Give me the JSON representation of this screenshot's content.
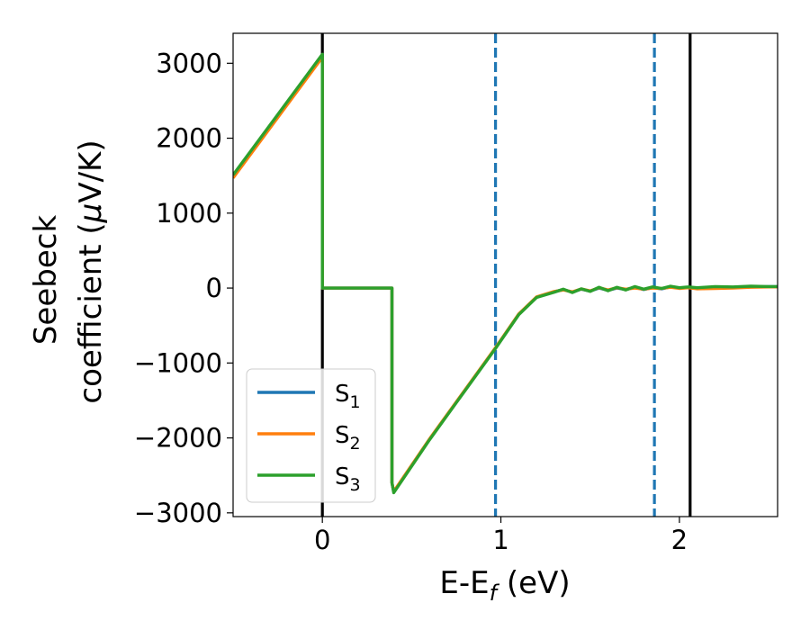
{
  "chart_data": {
    "type": "line",
    "xlabel": {
      "main": "E-E",
      "sub": "f",
      "unit": " (eV)"
    },
    "ylabel": {
      "line1": "Seebeck",
      "line2": "coefficient  (",
      "mu": "μ",
      "line2_end": "V/K)"
    },
    "xlim": [
      -0.5,
      2.55
    ],
    "ylim": [
      -3050,
      3400
    ],
    "xticks": [
      {
        "value": 0,
        "label": "0"
      },
      {
        "value": 1,
        "label": "1"
      },
      {
        "value": 2,
        "label": "2"
      }
    ],
    "yticks": [
      {
        "value": 3000,
        "label": "3000"
      },
      {
        "value": 2000,
        "label": "2000"
      },
      {
        "value": 1000,
        "label": "1000"
      },
      {
        "value": 0,
        "label": "0"
      },
      {
        "value": -1000,
        "label": "−1000"
      },
      {
        "value": -2000,
        "label": "−2000"
      },
      {
        "value": -3000,
        "label": "−3000"
      }
    ],
    "grid": false,
    "legend": {
      "placement": "lower-left"
    },
    "vlines": [
      {
        "x": 0.0,
        "color": "#000000",
        "style": "solid"
      },
      {
        "x": 2.06,
        "color": "#000000",
        "style": "solid"
      },
      {
        "x": 0.97,
        "color": "#1f77b4",
        "style": "dashed"
      },
      {
        "x": 1.86,
        "color": "#1f77b4",
        "style": "dashed"
      }
    ],
    "series": [
      {
        "name": "S",
        "sub": "1",
        "color": "#1f77b4",
        "x": [
          -0.5,
          0.0,
          0.0,
          0.0,
          0.39,
          0.39,
          0.4,
          0.6,
          0.8,
          0.97,
          1.1,
          1.2,
          1.3,
          1.35,
          1.4,
          1.45,
          1.5,
          1.55,
          1.6,
          1.65,
          1.7,
          1.75,
          1.8,
          1.85,
          1.9,
          1.95,
          2.0,
          2.05,
          2.1,
          2.2,
          2.3,
          2.4,
          2.5,
          2.55
        ],
        "y": [
          1500,
          3110,
          3110,
          0,
          0,
          -2600,
          -2720,
          -2020,
          -1360,
          -800,
          -350,
          -120,
          -50,
          -20,
          -55,
          -15,
          -40,
          0,
          -30,
          0,
          -20,
          10,
          -20,
          5,
          -10,
          15,
          0,
          10,
          0,
          5,
          10,
          15,
          20,
          20
        ]
      },
      {
        "name": "S",
        "sub": "2",
        "color": "#ff7f0e",
        "x": [
          -0.5,
          0.0,
          0.0,
          0.0,
          0.39,
          0.39,
          0.4,
          0.6,
          0.8,
          0.97,
          1.1,
          1.2,
          1.3,
          1.35,
          1.4,
          1.45,
          1.5,
          1.55,
          1.6,
          1.65,
          1.7,
          1.75,
          1.8,
          1.85,
          1.9,
          1.95,
          2.0,
          2.05,
          2.1,
          2.2,
          2.3,
          2.4,
          2.5,
          2.55
        ],
        "y": [
          1470,
          3080,
          3080,
          0,
          0,
          -2600,
          -2715,
          -2015,
          -1355,
          -795,
          -345,
          -118,
          -45,
          -25,
          -50,
          -12,
          -38,
          5,
          -25,
          5,
          -15,
          0,
          -15,
          0,
          -5,
          10,
          -5,
          5,
          -10,
          -5,
          0,
          10,
          15,
          15
        ]
      },
      {
        "name": "S",
        "sub": "3",
        "color": "#2ca02c",
        "x": [
          -0.5,
          0.0,
          0.0,
          0.0,
          0.39,
          0.39,
          0.4,
          0.6,
          0.8,
          0.97,
          1.1,
          1.2,
          1.3,
          1.35,
          1.4,
          1.45,
          1.5,
          1.55,
          1.6,
          1.65,
          1.7,
          1.75,
          1.8,
          1.85,
          1.9,
          1.95,
          2.0,
          2.05,
          2.1,
          2.2,
          2.3,
          2.4,
          2.5,
          2.55
        ],
        "y": [
          1510,
          3120,
          3120,
          0,
          0,
          -2600,
          -2730,
          -2025,
          -1365,
          -805,
          -355,
          -125,
          -55,
          -15,
          -60,
          -10,
          -45,
          10,
          -35,
          10,
          -25,
          20,
          -15,
          15,
          -5,
          25,
          5,
          15,
          5,
          20,
          15,
          25,
          20,
          20
        ]
      }
    ]
  }
}
